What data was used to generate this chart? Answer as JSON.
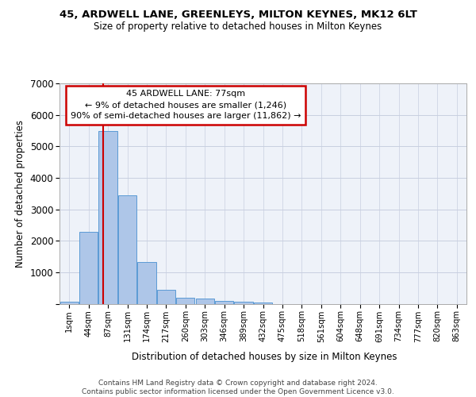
{
  "title1": "45, ARDWELL LANE, GREENLEYS, MILTON KEYNES, MK12 6LT",
  "title2": "Size of property relative to detached houses in Milton Keynes",
  "xlabel": "Distribution of detached houses by size in Milton Keynes",
  "ylabel": "Number of detached properties",
  "bin_labels": [
    "1sqm",
    "44sqm",
    "87sqm",
    "131sqm",
    "174sqm",
    "217sqm",
    "260sqm",
    "303sqm",
    "346sqm",
    "389sqm",
    "432sqm",
    "475sqm",
    "518sqm",
    "561sqm",
    "604sqm",
    "648sqm",
    "691sqm",
    "734sqm",
    "777sqm",
    "820sqm",
    "863sqm"
  ],
  "bar_values": [
    75,
    2280,
    5490,
    3440,
    1330,
    430,
    180,
    160,
    80,
    55,
    30,
    0,
    0,
    0,
    0,
    0,
    0,
    0,
    0,
    0,
    0
  ],
  "bar_color": "#aec6e8",
  "bar_edge_color": "#5b9bd5",
  "property_line_bin_index": 1.75,
  "annotation_text": "45 ARDWELL LANE: 77sqm\n← 9% of detached houses are smaller (1,246)\n90% of semi-detached houses are larger (11,862) →",
  "annotation_box_color": "#ffffff",
  "annotation_box_edge_color": "#cc0000",
  "vline_color": "#cc0000",
  "ylim": [
    0,
    7000
  ],
  "yticks": [
    0,
    1000,
    2000,
    3000,
    4000,
    5000,
    6000,
    7000
  ],
  "footer": "Contains HM Land Registry data © Crown copyright and database right 2024.\nContains public sector information licensed under the Open Government Licence v3.0.",
  "bg_color": "#eef2f9",
  "grid_color": "#c8cfe0"
}
